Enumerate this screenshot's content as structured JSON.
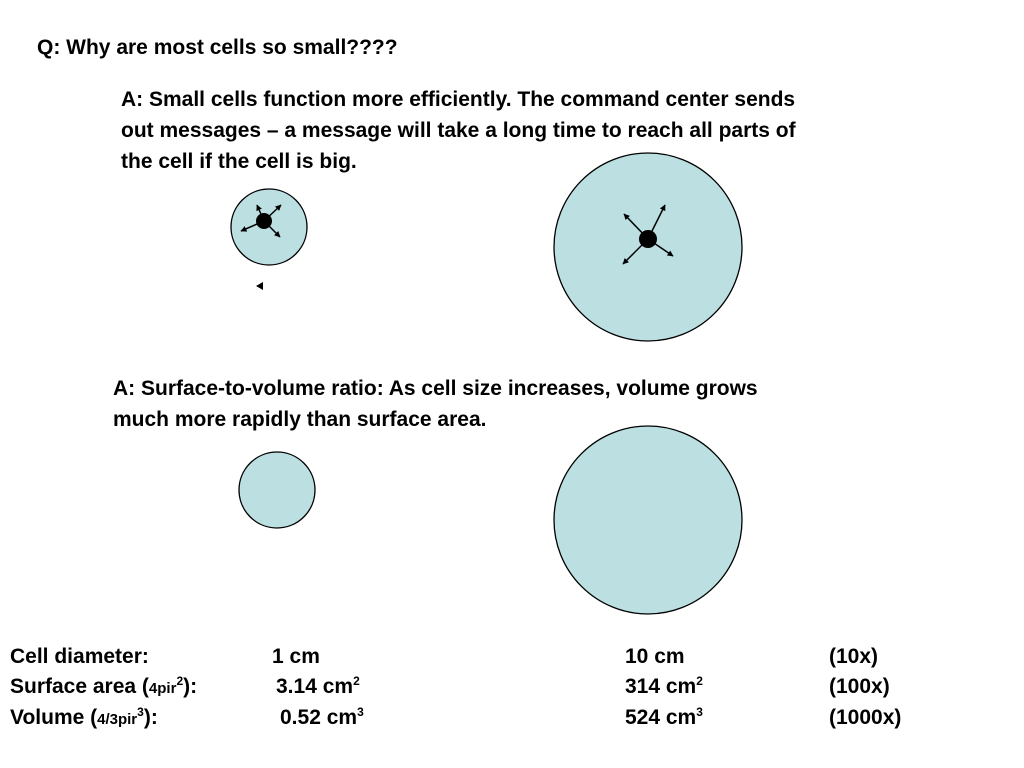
{
  "colors": {
    "cell_fill": "#bcdfe2",
    "outline": "#000000",
    "text": "#000000"
  },
  "question": "Q:  Why are most cells so small????",
  "answer1": {
    "line1": "A:  Small cells function more efficiently.  The command center sends",
    "line2": "out messages – a message will take a long time to reach all parts of",
    "line3": "the cell if the cell is big."
  },
  "answer2": {
    "line1": "A: Surface-to-volume ratio: As cell size increases, volume grows",
    "line2": "much more rapidly than surface area."
  },
  "table": {
    "diameter": {
      "label": "Cell diameter:",
      "small": "1 cm",
      "large": "10 cm",
      "factor": "(10x)"
    },
    "surface": {
      "label_main": "Surface area (",
      "formula": "4pir",
      "formula_exp": "2",
      "label_end": "):",
      "small": "3.14 cm",
      "small_exp": "2",
      "large": "314 cm",
      "large_exp": "2",
      "factor": "(100x)"
    },
    "volume": {
      "label_main": "Volume (",
      "formula": "4/3pir",
      "formula_exp": "3",
      "label_end": "):",
      "small": "0.52 cm",
      "small_exp": "3",
      "large": "524 cm",
      "large_exp": "3",
      "factor": "(1000x)"
    }
  }
}
